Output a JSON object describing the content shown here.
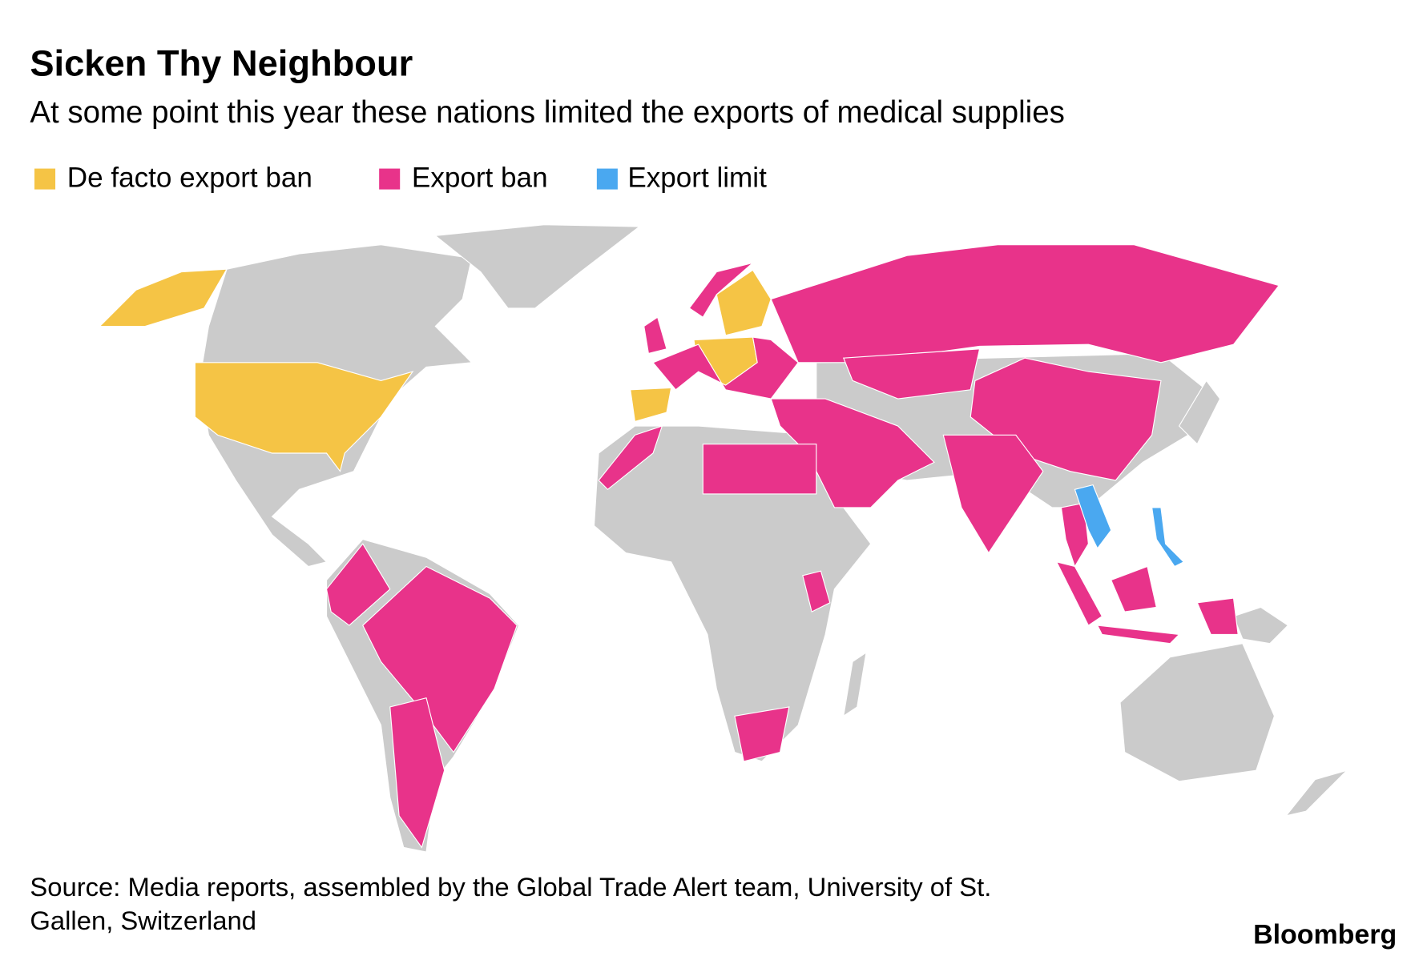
{
  "header": {
    "title": "Sicken Thy Neighbour",
    "subtitle": "At some point this year these nations limited the exports of medical supplies"
  },
  "legend": [
    {
      "label": "De facto export ban",
      "color": "#f5c445"
    },
    {
      "label": "Export ban",
      "color": "#e8338a"
    },
    {
      "label": "Export limit",
      "color": "#4aa8f0"
    }
  ],
  "footer": {
    "source_lines": [
      "Source: Media reports, assembled by the Global Trade Alert team, University of St.",
      "Gallen, Switzerland"
    ],
    "brand": "Bloomberg"
  }
}
